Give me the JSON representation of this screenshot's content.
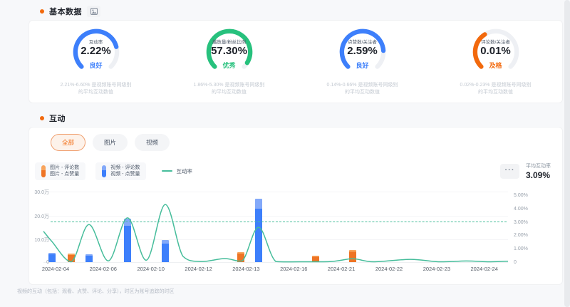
{
  "sections": {
    "basic": {
      "title": "基本数据"
    },
    "interaction": {
      "title": "互动"
    }
  },
  "gauges": [
    {
      "label": "互动率",
      "value": "2.22%",
      "status": "良好",
      "color": "#3d7ffb",
      "fraction": 0.78,
      "note1": "2.21%-6.60% 是视频账号同级别",
      "note2": "的平均互动数值"
    },
    {
      "label": "播放量/粉丝比例",
      "value": "57.30%",
      "status": "优秀",
      "color": "#27c17d",
      "fraction": 0.95,
      "note1": "1.86%-5.30% 是视频账号同级别",
      "note2": "的平均互动数值"
    },
    {
      "label": "点赞数/关注者",
      "value": "2.59%",
      "status": "良好",
      "color": "#3d7ffb",
      "fraction": 0.82,
      "note1": "0.14%-0.66% 是视频账号同级别",
      "note2": "的平均互动数值"
    },
    {
      "label": "评论数/关注者",
      "value": "0.01%",
      "status": "及格",
      "color": "#f2690d",
      "fraction": 0.38,
      "note1": "0.02%-0.23% 是视频账号同级别",
      "note2": "的平均互动数值"
    }
  ],
  "tabs": [
    {
      "label": "全部",
      "active": true
    },
    {
      "label": "图片",
      "active": false
    },
    {
      "label": "视频",
      "active": false
    }
  ],
  "legend": {
    "picture": {
      "line1": "图片 - 评论数",
      "line2": "图片 - 点赞量",
      "color_top": "#f8a45c",
      "color_bottom": "#ee7425"
    },
    "video": {
      "line1": "视频 - 评论数",
      "line2": "视频 - 点赞量",
      "color_top": "#83a9f9",
      "color_bottom": "#3d7ffb"
    },
    "rate": {
      "label": "互动率",
      "color": "#46bd9b"
    }
  },
  "avg": {
    "label": "平均互动率",
    "value": "3.09%",
    "more_icon": "···"
  },
  "chart_data": {
    "type": "bar+line",
    "title": "互动",
    "x_labels": [
      "2024-02-04",
      "2024-02-06",
      "2024-02-10",
      "2024-02-12",
      "2024-02-13",
      "2024-02-16",
      "2024-02-21",
      "2024-02-22",
      "2024-02-23",
      "2024-02-24"
    ],
    "y_left": {
      "labels": [
        "30.0万",
        "20.0万",
        "10.0万",
        "0"
      ],
      "values": [
        30,
        20,
        10,
        0
      ],
      "max": 34,
      "unit": "万"
    },
    "y_right": {
      "labels": [
        "5.00%",
        "4.00%",
        "3.00%",
        "2.00%",
        "1.00%",
        "0"
      ],
      "values": [
        5,
        4,
        3,
        2,
        1,
        0
      ],
      "max": 6,
      "unit": "%"
    },
    "avg_line_pct": 3.09,
    "series_colors": {
      "图片": {
        "top": "#f8a45c",
        "main": "#ee7425"
      },
      "视频": {
        "top": "#83a9f9",
        "main": "#3d7ffb"
      }
    },
    "bars": [
      {
        "x": 0.018,
        "series": "视频",
        "wan": 4.0
      },
      {
        "x": 0.06,
        "series": "图片",
        "wan": 3.6
      },
      {
        "x": 0.098,
        "series": "视频",
        "wan": 3.4
      },
      {
        "x": 0.181,
        "series": "视频",
        "wan": 18.5
      },
      {
        "x": 0.262,
        "series": "视频",
        "wan": 9.2
      },
      {
        "x": 0.425,
        "series": "图片",
        "wan": 4.3
      },
      {
        "x": 0.463,
        "series": "视频",
        "wan": 26.8
      },
      {
        "x": 0.586,
        "series": "图片",
        "wan": 2.8
      },
      {
        "x": 0.666,
        "series": "图片",
        "wan": 5.2
      }
    ],
    "line_pct_points": [
      [
        0.0,
        2.35
      ],
      [
        0.018,
        1.6
      ],
      [
        0.06,
        0.08
      ],
      [
        0.098,
        2.85
      ],
      [
        0.14,
        0.15
      ],
      [
        0.181,
        3.35
      ],
      [
        0.222,
        0.2
      ],
      [
        0.262,
        4.35
      ],
      [
        0.3,
        0.5
      ],
      [
        0.34,
        0.1
      ],
      [
        0.39,
        0.32
      ],
      [
        0.428,
        0.15
      ],
      [
        0.463,
        2.65
      ],
      [
        0.5,
        0.1
      ],
      [
        0.55,
        0.06
      ],
      [
        0.62,
        0.1
      ],
      [
        0.666,
        0.3
      ],
      [
        0.71,
        0.06
      ],
      [
        0.79,
        0.26
      ],
      [
        0.85,
        0.06
      ],
      [
        0.91,
        0.14
      ],
      [
        0.96,
        0.05
      ],
      [
        1.0,
        0.12
      ]
    ]
  },
  "footnote": "视频的互动（包括：观看、点赞、评论、分享），时区为账号追踪的时区"
}
